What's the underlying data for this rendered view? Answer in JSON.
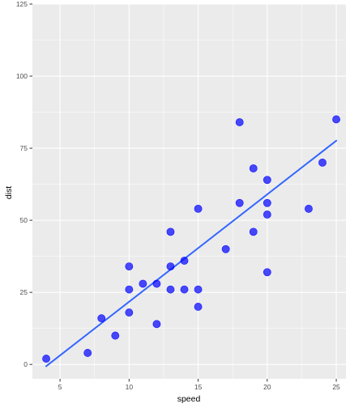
{
  "chart_data": {
    "type": "scatter",
    "title": "",
    "xlabel": "speed",
    "ylabel": "dist",
    "xlim": [
      3.0,
      25.7
    ],
    "ylim": [
      -5,
      125
    ],
    "x_ticks": [
      5,
      10,
      15,
      20,
      25
    ],
    "y_ticks": [
      0,
      25,
      50,
      75,
      100,
      125
    ],
    "grid": true,
    "legend": "none",
    "colors": {
      "panel": "#ebebeb",
      "grid_major": "#ffffff",
      "points": "#0000ff",
      "trend_line": "#3366ff"
    },
    "series": [
      {
        "x": [
          4,
          7,
          8,
          9,
          10,
          10,
          10,
          11,
          12,
          12,
          13,
          13,
          13,
          14,
          14,
          15,
          15,
          15,
          17,
          18,
          18,
          19,
          19,
          20,
          20,
          20,
          20,
          23,
          24,
          25
        ],
        "y": [
          2,
          4,
          16,
          10,
          18,
          26,
          34,
          28,
          14,
          28,
          26,
          34,
          46,
          26,
          36,
          20,
          26,
          54,
          40,
          56,
          84,
          46,
          68,
          32,
          52,
          56,
          64,
          54,
          70,
          85
        ]
      }
    ],
    "trend_line": {
      "x": [
        4,
        25
      ],
      "y": [
        -0.6,
        77.6
      ]
    }
  }
}
